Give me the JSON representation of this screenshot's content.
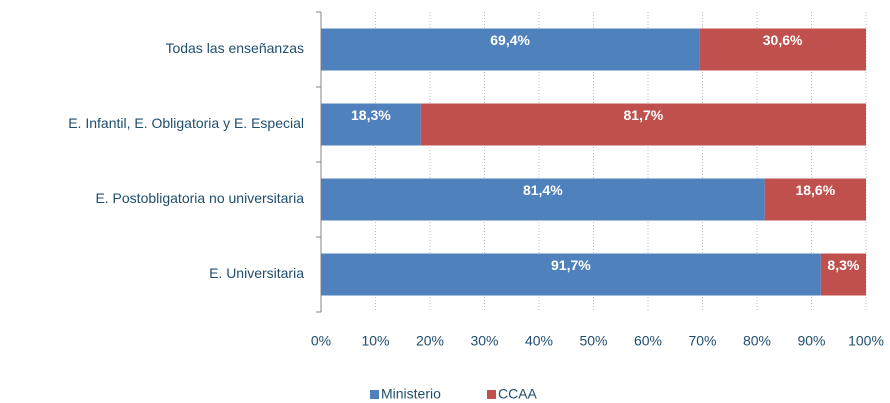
{
  "chart_data": {
    "type": "stacked-bar-horizontal",
    "categories": [
      "Todas las enseñanzas",
      "E. Infantil, E. Obligatoria y E. Especial",
      "E. Postobligatoria no universitaria",
      "E. Universitaria"
    ],
    "series": [
      {
        "name": "Ministerio",
        "color": "#4f81bd",
        "values": [
          69.4,
          18.3,
          81.4,
          91.7
        ],
        "value_labels": [
          "69,4%",
          "18,3%",
          "81,4%",
          "91,7%"
        ]
      },
      {
        "name": "CCAA",
        "color": "#c0504d",
        "values": [
          30.6,
          81.7,
          18.6,
          8.3
        ],
        "value_labels": [
          "30,6%",
          "81,7%",
          "18,6%",
          "8,3%"
        ]
      }
    ],
    "xlim": [
      0,
      100
    ],
    "xticks": [
      {
        "value": 0,
        "label": "0%"
      },
      {
        "value": 10,
        "label": "10%"
      },
      {
        "value": 20,
        "label": "20%"
      },
      {
        "value": 30,
        "label": "30%"
      },
      {
        "value": 40,
        "label": "40%"
      },
      {
        "value": 50,
        "label": "50%"
      },
      {
        "value": 60,
        "label": "60%"
      },
      {
        "value": 70,
        "label": "70%"
      },
      {
        "value": 80,
        "label": "80%"
      },
      {
        "value": 90,
        "label": "90%"
      },
      {
        "value": 100,
        "label": "100%"
      }
    ],
    "grid": true,
    "legend": "bottom"
  }
}
